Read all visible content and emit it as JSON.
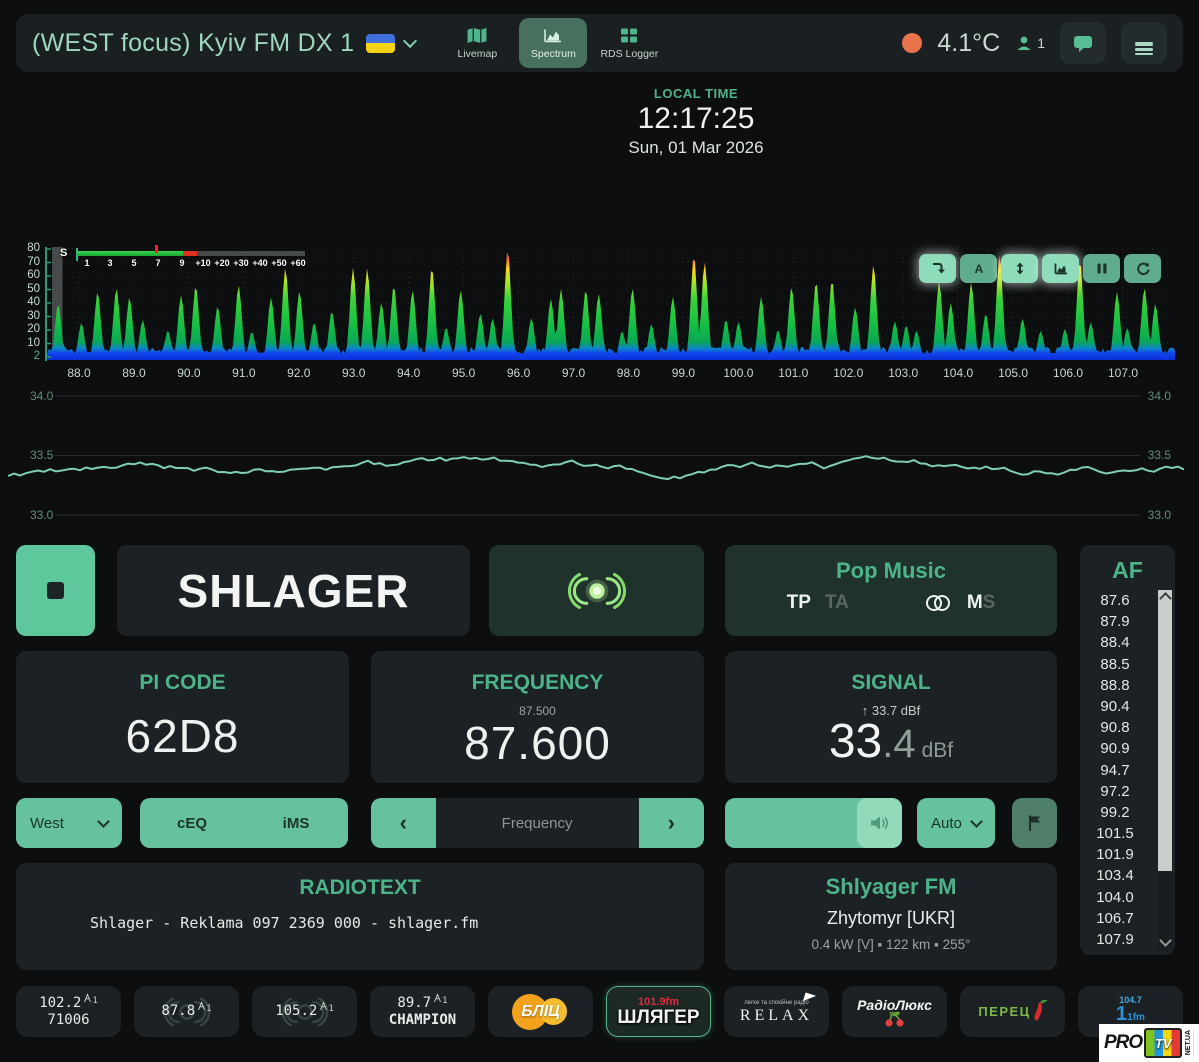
{
  "header": {
    "title": "(WEST focus) Kyiv FM DX 1",
    "nav": [
      {
        "label": "Livemap"
      },
      {
        "label": "Spectrum"
      },
      {
        "label": "RDS Logger"
      }
    ],
    "temperature": "4.1°C",
    "users_count": "1"
  },
  "clock": {
    "label": "LOCAL TIME",
    "time": "12:17:25",
    "date": "Sun, 01 Mar 2026"
  },
  "spectrum": {
    "db_labels": [
      "80",
      "70",
      "60",
      "50",
      "40",
      "30",
      "20",
      "10",
      "2"
    ],
    "freq_labels": [
      "88.0",
      "89.0",
      "90.0",
      "91.0",
      "92.0",
      "93.0",
      "94.0",
      "95.0",
      "96.0",
      "97.0",
      "98.0",
      "99.0",
      "100.0",
      "101.0",
      "102.0",
      "103.0",
      "104.0",
      "105.0",
      "106.0",
      "107.0"
    ],
    "smeter": {
      "label": "S",
      "ticks": [
        "1",
        "3",
        "5",
        "7",
        "9",
        "+10",
        "+20",
        "+30",
        "+40",
        "+50",
        "+60"
      ]
    }
  },
  "signal_graph": {
    "y_labels": [
      "34.0",
      "33.5",
      "33.0"
    ]
  },
  "station": {
    "ps": "SHLAGER",
    "pty": "Pop Music",
    "tp": "TP",
    "ta": "TA",
    "m": "M",
    "s": "S",
    "pi_label": "PI CODE",
    "pi": "62D8",
    "freq_label": "FREQUENCY",
    "freq_prev": "87.500",
    "freq": "87.600",
    "signal_label": "SIGNAL",
    "signal_peak": "33.7 dBf",
    "signal_int": "33",
    "signal_dec": ".4",
    "signal_unit": "dBf",
    "af_label": "AF",
    "af_list": [
      "87.6",
      "87.9",
      "88.4",
      "88.5",
      "88.8",
      "90.4",
      "90.8",
      "90.9",
      "94.7",
      "97.2",
      "99.2",
      "101.5",
      "101.9",
      "103.4",
      "104.0",
      "106.7",
      "107.9"
    ]
  },
  "controls": {
    "antenna": "West",
    "eq": "cEQ",
    "ims": "iMS",
    "freq_placeholder": "Frequency",
    "mode": "Auto"
  },
  "radiotext": {
    "label": "RADIOTEXT",
    "text": "Shlager - Reklama 097 2369 000 - shlager.fm"
  },
  "tx_info": {
    "name": "Shlyager FM",
    "location": "Zhytomyr [UKR]",
    "details": "0.4 kW [V] ▪ 122 km ▪ 255°"
  },
  "presets": [
    {
      "freq": "102.2",
      "name": "71006",
      "tx": "1"
    },
    {
      "freq": "87.8",
      "tx": "1"
    },
    {
      "freq": "105.2",
      "tx": "1"
    },
    {
      "freq": "89.7",
      "name": "CHAMPION",
      "tx": "1"
    },
    {
      "logo": "БЛІЦ"
    },
    {
      "logo": "ШЛЯГЕР",
      "sub": "101.9fm"
    },
    {
      "logo": "RELAX",
      "tagline": "легке та спокійне радіо"
    },
    {
      "logo": "РадіоЛюкс"
    },
    {
      "logo": "ПЕРЕЦ"
    },
    {
      "logo": "1fm",
      "sub": "104.7"
    }
  ],
  "watermark": {
    "pro": "PRO",
    "tv": "TV",
    "net": "NET.UA"
  }
}
